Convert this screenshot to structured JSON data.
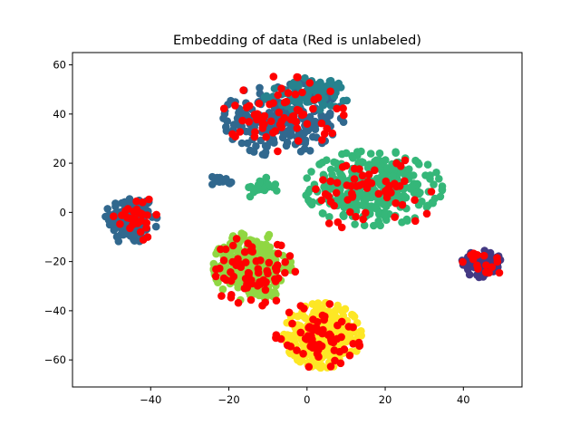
{
  "chart_data": {
    "type": "scatter",
    "title": "Embedding of data (Red is unlabeled)",
    "xlabel": "",
    "ylabel": "",
    "xlim": [
      -60,
      55
    ],
    "ylim": [
      -71,
      65
    ],
    "grid": false,
    "x_ticks": [
      -40,
      -20,
      0,
      20,
      40
    ],
    "y_ticks": [
      -60,
      -40,
      -20,
      0,
      20,
      40,
      60
    ],
    "x_tick_labels": [
      "−40",
      "−20",
      "0",
      "20",
      "40"
    ],
    "y_tick_labels": [
      "−60",
      "−40",
      "−20",
      "0",
      "20",
      "40",
      "60"
    ],
    "colors": {
      "dark_blue": "#31688e",
      "teal": "#26828e",
      "green": "#35b779",
      "lime": "#90d743",
      "yellow": "#fde725",
      "purple": "#443983",
      "unlabeled": "#ff0000"
    },
    "series": [
      {
        "color_key": "dark_blue",
        "clusters": [
          {
            "cx": -45,
            "cy": -3,
            "rx": 6,
            "ry": 10,
            "n": 130
          },
          {
            "cx": -6,
            "cy": 38,
            "rx": 14,
            "ry": 14,
            "n": 220
          },
          {
            "cx": -22,
            "cy": 13,
            "rx": 3,
            "ry": 2,
            "n": 14
          }
        ]
      },
      {
        "color_key": "teal",
        "clusters": [
          {
            "cx": 0,
            "cy": 48,
            "rx": 10,
            "ry": 6,
            "n": 90
          }
        ]
      },
      {
        "color_key": "green",
        "clusters": [
          {
            "cx": 17,
            "cy": 10,
            "rx": 16,
            "ry": 14,
            "n": 320
          },
          {
            "cx": -12,
            "cy": 10,
            "rx": 4,
            "ry": 4,
            "n": 25
          }
        ]
      },
      {
        "color_key": "lime",
        "clusters": [
          {
            "cx": -14,
            "cy": -22,
            "rx": 9,
            "ry": 13,
            "n": 280
          }
        ]
      },
      {
        "color_key": "yellow",
        "clusters": [
          {
            "cx": 4,
            "cy": -50,
            "rx": 9,
            "ry": 12,
            "n": 300
          }
        ]
      },
      {
        "color_key": "purple",
        "clusters": [
          {
            "cx": 45,
            "cy": -21,
            "rx": 5,
            "ry": 5,
            "n": 80
          }
        ]
      },
      {
        "color_key": "unlabeled",
        "clusters": [
          {
            "cx": -44,
            "cy": -2,
            "rx": 5,
            "ry": 9,
            "n": 30
          },
          {
            "cx": -6,
            "cy": 40,
            "rx": 14,
            "ry": 14,
            "n": 70
          },
          {
            "cx": 16,
            "cy": 8,
            "rx": 16,
            "ry": 14,
            "n": 60
          },
          {
            "cx": -14,
            "cy": -24,
            "rx": 10,
            "ry": 13,
            "n": 70
          },
          {
            "cx": 3,
            "cy": -50,
            "rx": 10,
            "ry": 12,
            "n": 70
          },
          {
            "cx": 45,
            "cy": -21,
            "rx": 5,
            "ry": 5,
            "n": 15
          }
        ]
      }
    ]
  }
}
